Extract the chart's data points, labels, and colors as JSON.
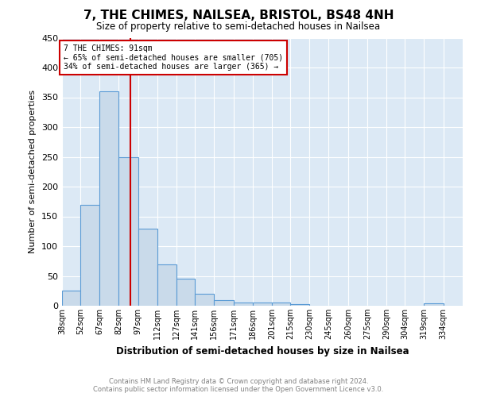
{
  "title": "7, THE CHIMES, NAILSEA, BRISTOL, BS48 4NH",
  "subtitle": "Size of property relative to semi-detached houses in Nailsea",
  "xlabel": "Distribution of semi-detached houses by size in Nailsea",
  "ylabel": "Number of semi-detached properties",
  "footer_line1": "Contains HM Land Registry data © Crown copyright and database right 2024.",
  "footer_line2": "Contains public sector information licensed under the Open Government Licence v3.0.",
  "annotation_title": "7 THE CHIMES: 91sqm",
  "annotation_line1": "← 65% of semi-detached houses are smaller (705)",
  "annotation_line2": "34% of semi-detached houses are larger (365) →",
  "property_size": 91,
  "bar_left_edges": [
    38,
    52,
    67,
    82,
    97,
    112,
    127,
    141,
    156,
    171,
    186,
    201,
    215,
    230,
    245,
    260,
    275,
    290,
    304,
    319,
    334
  ],
  "bar_heights": [
    25,
    170,
    360,
    250,
    130,
    70,
    45,
    20,
    10,
    6,
    6,
    6,
    3,
    0,
    0,
    0,
    0,
    0,
    0,
    4,
    0
  ],
  "tick_labels": [
    "38sqm",
    "52sqm",
    "67sqm",
    "82sqm",
    "97sqm",
    "112sqm",
    "127sqm",
    "141sqm",
    "156sqm",
    "171sqm",
    "186sqm",
    "201sqm",
    "215sqm",
    "230sqm",
    "245sqm",
    "260sqm",
    "275sqm",
    "290sqm",
    "304sqm",
    "319sqm",
    "334sqm"
  ],
  "bar_color": "#c9daea",
  "bar_edge_color": "#5b9bd5",
  "vline_color": "#cc0000",
  "annotation_box_color": "#cc0000",
  "ylim": [
    0,
    450
  ],
  "yticks": [
    0,
    50,
    100,
    150,
    200,
    250,
    300,
    350,
    400,
    450
  ],
  "background_color": "#ffffff",
  "plot_bg_color": "#dce9f5"
}
